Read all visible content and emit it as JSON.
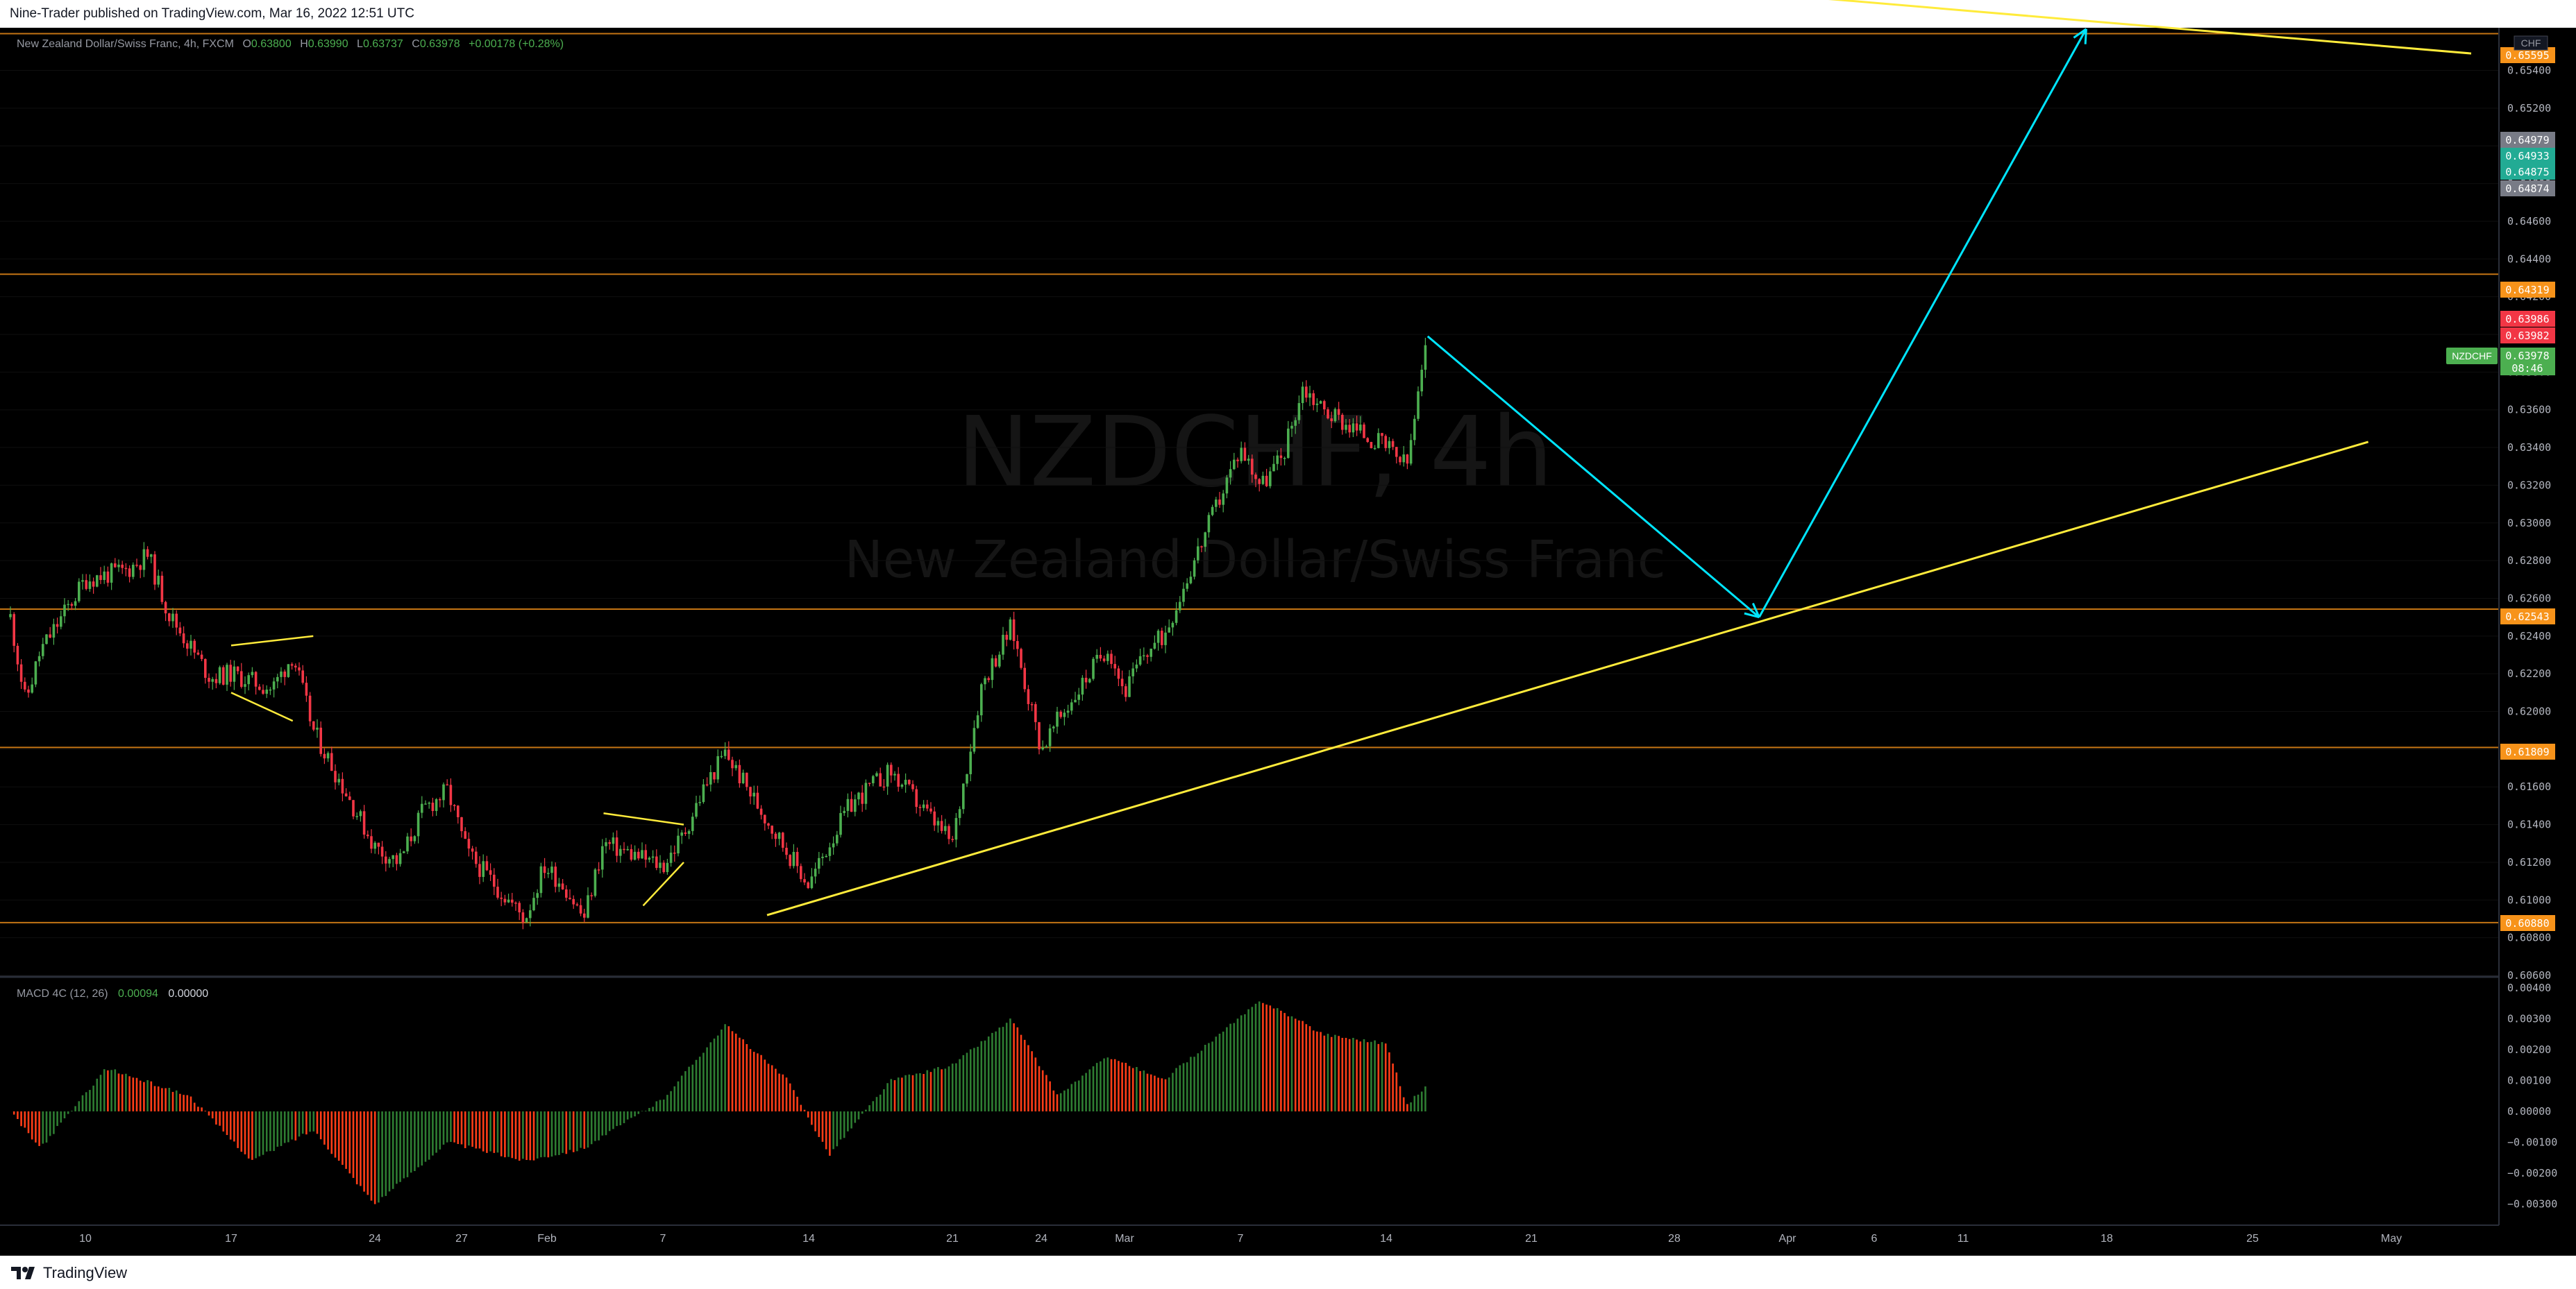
{
  "header": {
    "publisher_line": "Nine-Trader published on TradingView.com, Mar 16, 2022 12:51 UTC"
  },
  "legend": {
    "symbol_full": "New Zealand Dollar/Swiss Franc, 4h, FXCM",
    "open_label": "O",
    "open": "0.63800",
    "high_label": "H",
    "high": "0.63990",
    "low_label": "L",
    "low": "0.63737",
    "close_label": "C",
    "close": "0.63978",
    "change": "+0.00178 (+0.28%)"
  },
  "watermark": {
    "symbol": "NZDCHF, 4h",
    "name": "New Zealand Dollar/Swiss Franc"
  },
  "currency_label": "CHF",
  "price_axis": {
    "ticks": [
      "0.65400",
      "0.65200",
      "0.65000",
      "0.64800",
      "0.64600",
      "0.64400",
      "0.64200",
      "0.64000",
      "0.63800",
      "0.63600",
      "0.63400",
      "0.63200",
      "0.63000",
      "0.62800",
      "0.62600",
      "0.62400",
      "0.62200",
      "0.62000",
      "0.61800",
      "0.61600",
      "0.61400",
      "0.61200",
      "0.61000",
      "0.60800",
      "0.60600"
    ]
  },
  "price_badges": [
    {
      "value": "0.65595",
      "color": "#f7931a"
    },
    {
      "value": "0.64979",
      "color": "#787b86"
    },
    {
      "value": "0.64933",
      "color": "#22ab94"
    },
    {
      "value": "0.64875",
      "color": "#22ab94"
    },
    {
      "value": "0.64874",
      "color": "#787b86"
    },
    {
      "value": "0.64319",
      "color": "#f7931a"
    },
    {
      "value": "0.63986",
      "color": "#f23645"
    },
    {
      "value": "0.63982",
      "color": "#f23645"
    },
    {
      "value": "0.63978",
      "color": "#4caf50"
    },
    {
      "value": "0.62543",
      "color": "#f7931a"
    },
    {
      "value": "0.61809",
      "color": "#f7931a"
    },
    {
      "value": "0.60880",
      "color": "#f7931a"
    }
  ],
  "last_price": {
    "symbol": "NZDCHF",
    "value": "0.63978",
    "countdown": "08:46"
  },
  "horizontal_levels": [
    0.65595,
    0.64319,
    0.62543,
    0.61809,
    0.6088
  ],
  "macd": {
    "label": "MACD 4C (12, 26)",
    "value1": "0.00094",
    "value2": "0.00000",
    "ticks": [
      "0.00400",
      "0.00300",
      "0.00200",
      "0.00100",
      "0.00000",
      "−0.00100",
      "−0.00200",
      "−0.00300"
    ]
  },
  "time_axis": {
    "labels": [
      "10",
      "17",
      "24",
      "27",
      "Feb",
      "7",
      "14",
      "21",
      "24",
      "Mar",
      "7",
      "14",
      "21",
      "28",
      "Apr",
      "6",
      "11",
      "18",
      "25",
      "May"
    ]
  },
  "footer": {
    "brand": "TradingView"
  },
  "colors": {
    "background": "#000000",
    "up": "#4caf50",
    "down": "#f23645",
    "level": "#f7931a",
    "trendline": "#ffeb3b",
    "projection": "#00e5ff",
    "macd_up": "#2e7d32",
    "macd_down": "#ff3d17"
  },
  "chart_data": {
    "type": "candlestick",
    "title": "New Zealand Dollar/Swiss Franc, 4h, FXCM",
    "ylim": [
      0.606,
      0.657
    ],
    "path_points": [
      {
        "t": "Jan 05",
        "p": 0.625
      },
      {
        "t": "Jan 06",
        "p": 0.6205
      },
      {
        "t": "Jan 07",
        "p": 0.6232
      },
      {
        "t": "Jan 10",
        "p": 0.627
      },
      {
        "t": "Jan 12",
        "p": 0.6275
      },
      {
        "t": "Jan 13",
        "p": 0.6283
      },
      {
        "t": "Jan 14",
        "p": 0.6252
      },
      {
        "t": "Jan 16",
        "p": 0.6218
      },
      {
        "t": "Jan 17",
        "p": 0.622
      },
      {
        "t": "Jan 19",
        "p": 0.6212
      },
      {
        "t": "Jan 20",
        "p": 0.623
      },
      {
        "t": "Jan 21",
        "p": 0.619
      },
      {
        "t": "Jan 24",
        "p": 0.6128
      },
      {
        "t": "Jan 25",
        "p": 0.612
      },
      {
        "t": "Jan 26",
        "p": 0.6148
      },
      {
        "t": "Jan 27",
        "p": 0.6158
      },
      {
        "t": "Jan 28",
        "p": 0.6125
      },
      {
        "t": "Jan 31",
        "p": 0.609
      },
      {
        "t": "Feb 01",
        "p": 0.6118
      },
      {
        "t": "Feb 02",
        "p": 0.6108
      },
      {
        "t": "Feb 03",
        "p": 0.609
      },
      {
        "t": "Feb 04",
        "p": 0.613
      },
      {
        "t": "Feb 07",
        "p": 0.6118
      },
      {
        "t": "Feb 08",
        "p": 0.6135
      },
      {
        "t": "Feb 09",
        "p": 0.616
      },
      {
        "t": "Feb 10",
        "p": 0.6178
      },
      {
        "t": "Feb 11",
        "p": 0.616
      },
      {
        "t": "Feb 14",
        "p": 0.6108
      },
      {
        "t": "Feb 15",
        "p": 0.613
      },
      {
        "t": "Feb 16",
        "p": 0.615
      },
      {
        "t": "Feb 17",
        "p": 0.616
      },
      {
        "t": "Feb 18",
        "p": 0.6168
      },
      {
        "t": "Feb 21",
        "p": 0.613
      },
      {
        "t": "Feb 22",
        "p": 0.6215
      },
      {
        "t": "Feb 23",
        "p": 0.6245
      },
      {
        "t": "Feb 24",
        "p": 0.618
      },
      {
        "t": "Feb 25",
        "p": 0.6195
      },
      {
        "t": "Feb 28",
        "p": 0.6235
      },
      {
        "t": "Mar 01",
        "p": 0.621
      },
      {
        "t": "Mar 02",
        "p": 0.623
      },
      {
        "t": "Mar 03",
        "p": 0.624
      },
      {
        "t": "Mar 04",
        "p": 0.6265
      },
      {
        "t": "Mar 07",
        "p": 0.634
      },
      {
        "t": "Mar 08",
        "p": 0.632
      },
      {
        "t": "Mar 09",
        "p": 0.6335
      },
      {
        "t": "Mar 10",
        "p": 0.6372
      },
      {
        "t": "Mar 11",
        "p": 0.636
      },
      {
        "t": "Mar 14",
        "p": 0.634
      },
      {
        "t": "Mar 15",
        "p": 0.633
      },
      {
        "t": "Mar 16",
        "p": 0.6398
      }
    ],
    "projection_points": [
      {
        "t": "Mar 16",
        "p": 0.6399
      },
      {
        "t": "Mar 31",
        "p": 0.625
      },
      {
        "t": "Apr 17",
        "p": 0.6562
      }
    ],
    "trendlines": [
      {
        "from": {
          "t": "Feb 12",
          "p": 0.6092
        },
        "to": {
          "t": "Apr 30",
          "p": 0.6343
        }
      },
      {
        "from": {
          "t": "Mar 17",
          "p": 0.6595
        },
        "to": {
          "t": "May 10",
          "p": 0.6549
        }
      }
    ],
    "macd_histogram_path": [
      {
        "t": "Jan 05",
        "v": 0.0
      },
      {
        "t": "Jan 07",
        "v": -0.0012
      },
      {
        "t": "Jan 11",
        "v": 0.0014
      },
      {
        "t": "Jan 15",
        "v": 0.0005
      },
      {
        "t": "Jan 18",
        "v": -0.0016
      },
      {
        "t": "Jan 21",
        "v": -0.0006
      },
      {
        "t": "Jan 24",
        "v": -0.003
      },
      {
        "t": "Jan 27",
        "v": -0.001
      },
      {
        "t": "Jan 31",
        "v": -0.0016
      },
      {
        "t": "Feb 03",
        "v": -0.0012
      },
      {
        "t": "Feb 07",
        "v": 0.0004
      },
      {
        "t": "Feb 10",
        "v": 0.0028
      },
      {
        "t": "Feb 13",
        "v": 0.001
      },
      {
        "t": "Feb 15",
        "v": -0.0014
      },
      {
        "t": "Feb 18",
        "v": 0.001
      },
      {
        "t": "Feb 21",
        "v": 0.0015
      },
      {
        "t": "Feb 23",
        "v": 0.003
      },
      {
        "t": "Feb 25",
        "v": 0.0005
      },
      {
        "t": "Feb 28",
        "v": 0.0018
      },
      {
        "t": "Mar 03",
        "v": 0.001
      },
      {
        "t": "Mar 08",
        "v": 0.0036
      },
      {
        "t": "Mar 11",
        "v": 0.0025
      },
      {
        "t": "Mar 14",
        "v": 0.0022
      },
      {
        "t": "Mar 15",
        "v": 0.0002
      },
      {
        "t": "Mar 16",
        "v": 0.0009
      }
    ]
  }
}
